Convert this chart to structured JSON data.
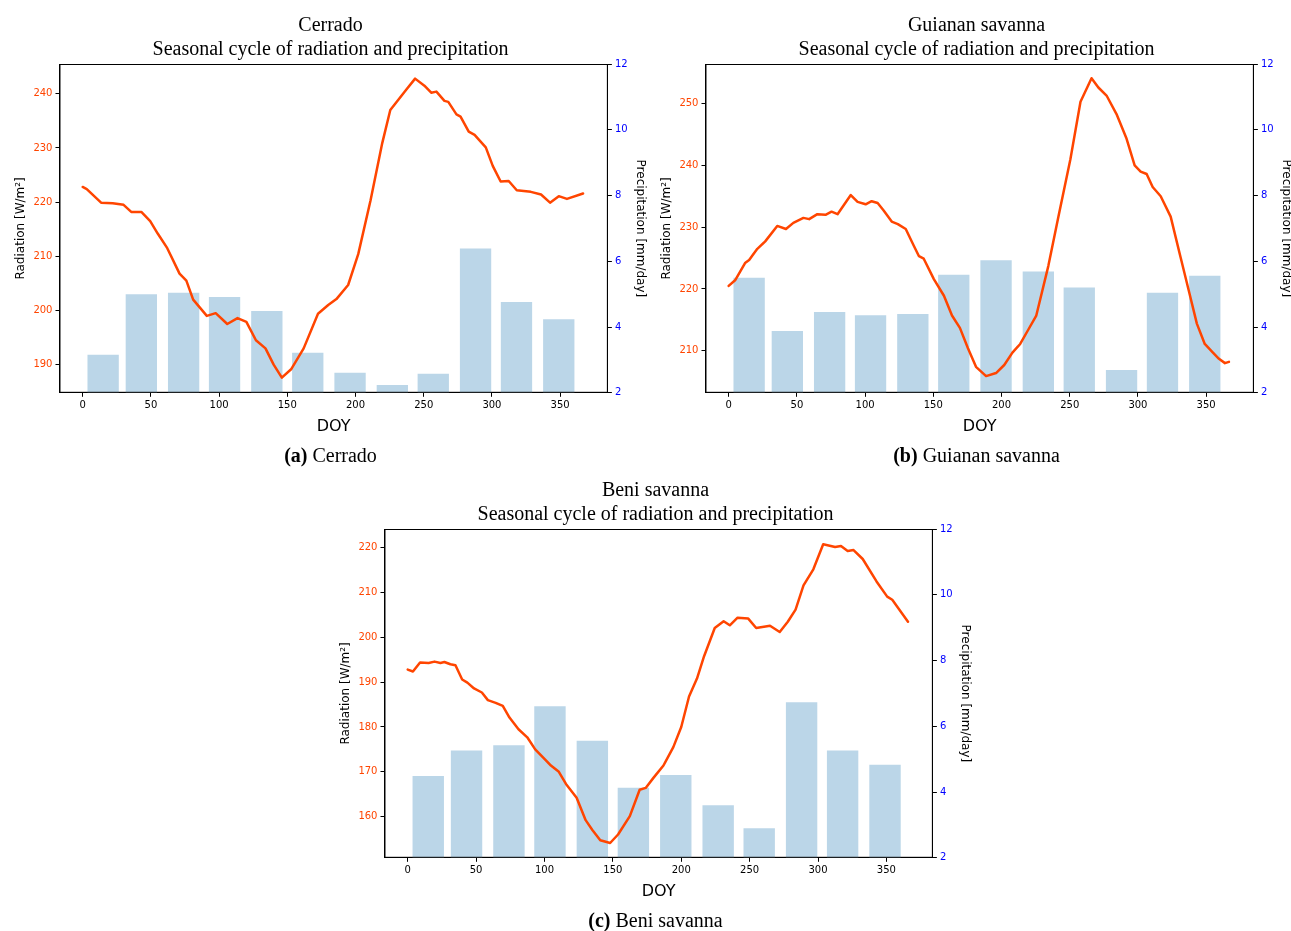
{
  "chart_data": [
    {
      "type": "line",
      "title": "Cerrado",
      "subtitle": "Seasonal cycle of radiation and precipitation",
      "xlabel": "DOY",
      "ylabel": "Radiation [W/m²]",
      "y2label": "Precipitation [mm/day]",
      "annotations": [
        "(a) Cerrado"
      ],
      "marker": "none",
      "xlim": [
        -17,
        385
      ],
      "xticks": [
        0,
        50,
        100,
        150,
        200,
        250,
        300,
        350
      ],
      "ylim": [
        184.8,
        245.5
      ],
      "yticks": [
        190,
        200,
        210,
        220,
        230,
        240
      ],
      "y2lim": [
        2,
        12
      ],
      "y2ticks": [
        2,
        4,
        6,
        8,
        10,
        12
      ],
      "series": [
        {
          "type": "bar",
          "axis": "y2",
          "color": "#bbd6e8",
          "x": [
            15,
            43,
            74,
            104,
            135,
            165,
            196,
            227,
            257,
            288,
            318,
            349
          ],
          "values": [
            3.16,
            5.0,
            5.04,
            4.91,
            4.49,
            3.22,
            2.61,
            2.24,
            2.58,
            6.39,
            4.76,
            4.24
          ]
        },
        {
          "type": "line",
          "axis": "y",
          "color": "#ff4500",
          "x": [
            0,
            3,
            13.5,
            22,
            30,
            35.6,
            43,
            49.5,
            55,
            62,
            71,
            76,
            81,
            91,
            97.5,
            106,
            113.5,
            120,
            127,
            134,
            140,
            146,
            153,
            162,
            172.5,
            180,
            186,
            194.6,
            202,
            211,
            219.6,
            225.5,
            231.4,
            237.3,
            243.7,
            250.5,
            255.5,
            259.3,
            265.2,
            268,
            274,
            277,
            283,
            287.3,
            295.5,
            300.6,
            306.4,
            312.3,
            318.2,
            328.5,
            336,
            342.6,
            349,
            355,
            366.8
          ],
          "values": [
            222.8,
            222.4,
            219.9,
            219.8,
            219.5,
            218.2,
            218.2,
            216.5,
            214.2,
            211.5,
            206.8,
            205.5,
            202,
            199,
            199.5,
            197.5,
            198.6,
            197.9,
            194.5,
            193,
            190,
            187.6,
            189.2,
            193,
            199.4,
            201,
            202.1,
            204.7,
            210.4,
            220.3,
            230.9,
            237,
            238.9,
            240.8,
            242.8,
            241.5,
            240.2,
            240.4,
            238.7,
            238.5,
            236.2,
            235.8,
            233,
            232.4,
            230.1,
            226.7,
            223.8,
            223.9,
            222.2,
            221.9,
            221.4,
            219.9,
            221.1,
            220.6,
            221.6
          ]
        }
      ]
    },
    {
      "type": "line",
      "title": "Guianan savanna",
      "subtitle": "Seasonal cycle of radiation and precipitation",
      "xlabel": "DOY",
      "ylabel": "Radiation [W/m²]",
      "y2label": "Precipitation [mm/day]",
      "annotations": [
        "(b) Guianan savanna"
      ],
      "marker": "none",
      "xlim": [
        -17,
        385
      ],
      "xticks": [
        0,
        50,
        100,
        150,
        200,
        250,
        300,
        350
      ],
      "ylim": [
        203.2,
        256.4
      ],
      "yticks": [
        210,
        220,
        230,
        240,
        250
      ],
      "y2lim": [
        2,
        12
      ],
      "y2ticks": [
        2,
        4,
        6,
        8,
        10,
        12
      ],
      "series": [
        {
          "type": "bar",
          "axis": "y2",
          "color": "#bbd6e8",
          "x": [
            15,
            43,
            74,
            104,
            135,
            165,
            196,
            227,
            257,
            288,
            318,
            349
          ],
          "values": [
            5.5,
            3.88,
            4.46,
            4.36,
            4.4,
            5.59,
            6.03,
            5.69,
            5.2,
            2.69,
            5.04,
            5.56
          ]
        },
        {
          "type": "line",
          "axis": "y",
          "color": "#ff4500",
          "x": [
            0,
            4.7,
            12,
            15,
            21,
            26.8,
            35.6,
            42,
            47.4,
            54.8,
            59,
            65,
            71,
            75.4,
            79.8,
            84.2,
            89.5,
            94.5,
            100.4,
            104.8,
            109.2,
            113.6,
            119.5,
            124,
            129.8,
            135.7,
            139.5,
            143,
            150.4,
            157.8,
            163.7,
            169.5,
            175.4,
            181.3,
            188.7,
            196,
            202,
            208,
            213.7,
            219.6,
            225.5,
            234.3,
            241.7,
            250.5,
            257.9,
            266,
            271,
            277,
            284.3,
            291.7,
            297.6,
            302,
            306.4,
            310.8,
            316.7,
            324,
            331.4,
            337.3,
            343.2,
            349,
            355,
            359.4,
            363.8,
            366.7
          ],
          "values": [
            220.5,
            221.4,
            224.2,
            224.7,
            226.5,
            227.7,
            230.2,
            229.7,
            230.7,
            231.5,
            231.3,
            232.1,
            232,
            232.5,
            232.1,
            233.5,
            235.2,
            234.1,
            233.7,
            234.2,
            233.9,
            232.7,
            230.9,
            230.5,
            229.7,
            227,
            225.3,
            224.9,
            221.6,
            218.9,
            215.7,
            213.7,
            210.4,
            207.4,
            205.9,
            206.4,
            207.7,
            209.7,
            211.1,
            213.4,
            215.7,
            223.7,
            231.7,
            241,
            250.3,
            254.1,
            252.6,
            251.3,
            248.3,
            244.3,
            240,
            239,
            238.6,
            236.5,
            235,
            231.7,
            225,
            219.7,
            214.4,
            211.1,
            209.7,
            208.7,
            208,
            208.2
          ]
        }
      ]
    },
    {
      "type": "line",
      "title": "Beni savanna",
      "subtitle": "Seasonal cycle of radiation and precipitation",
      "xlabel": "DOY",
      "ylabel": "Radiation [W/m²]",
      "y2label": "Precipitation [mm/day]",
      "annotations": [
        "(c) Beni savanna"
      ],
      "marker": "none",
      "xlim": [
        -17,
        384
      ],
      "xticks": [
        0,
        50,
        100,
        150,
        200,
        250,
        300,
        350
      ],
      "ylim": [
        150.8,
        224.2
      ],
      "yticks": [
        160,
        170,
        180,
        190,
        200,
        210,
        220
      ],
      "y2lim": [
        2,
        12
      ],
      "y2ticks": [
        2,
        4,
        6,
        8,
        10,
        12
      ],
      "series": [
        {
          "type": "bar",
          "axis": "y2",
          "color": "#bbd6e8",
          "x": [
            15,
            43,
            74,
            104,
            135,
            165,
            196,
            227,
            257,
            288,
            318,
            349
          ],
          "values": [
            4.49,
            5.26,
            5.42,
            6.61,
            5.56,
            4.13,
            4.52,
            3.6,
            2.9,
            6.73,
            5.26,
            4.83
          ]
        },
        {
          "type": "line",
          "axis": "y",
          "color": "#ff4500",
          "x": [
            0,
            3.8,
            9,
            15.3,
            19.6,
            23.9,
            26.8,
            31.2,
            34.9,
            39.8,
            43.6,
            48.5,
            54.2,
            58.6,
            64.3,
            69.5,
            74.4,
            81,
            87.4,
            93.2,
            98.9,
            104.7,
            110.5,
            115.7,
            123.5,
            130.1,
            135,
            140.8,
            148,
            153.8,
            162.4,
            169.6,
            174,
            179.8,
            187,
            194.2,
            200,
            205.7,
            211.5,
            216.7,
            224.5,
            231,
            235.5,
            241.2,
            249,
            254.8,
            260.5,
            264.9,
            272,
            277.9,
            283.6,
            289.4,
            296.6,
            303.8,
            312.5,
            316.8,
            321.7,
            326,
            332.7,
            342.8,
            350.6,
            354.3,
            365.8
          ],
          "values": [
            192.8,
            192.4,
            194.4,
            194.3,
            194.6,
            194.3,
            194.5,
            194,
            193.8,
            190.6,
            189.9,
            188.6,
            187.7,
            186,
            185.4,
            184.7,
            182.1,
            179.5,
            177.7,
            175,
            173.2,
            171.4,
            170,
            167.3,
            164.2,
            159.2,
            157,
            154.7,
            154.1,
            156,
            160.1,
            166,
            166.4,
            168.7,
            171.4,
            175.5,
            180,
            186.8,
            190.8,
            195.8,
            202.1,
            203.6,
            202.7,
            204.4,
            204.2,
            202.1,
            202.4,
            202.6,
            201.2,
            203.5,
            206.2,
            211.6,
            215.2,
            220.8,
            220.2,
            220.4,
            219.3,
            219.5,
            217.5,
            212.5,
            209.1,
            208.4,
            203.5
          ]
        }
      ]
    }
  ]
}
